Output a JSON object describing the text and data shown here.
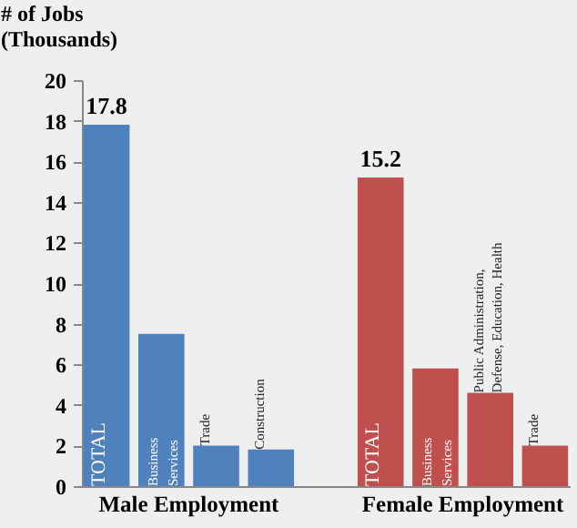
{
  "chart_data": {
    "type": "bar",
    "ylabel": "# of Jobs (Thousands)",
    "categories": [
      "TOTAL",
      "Business Services",
      "Trade",
      "Construction",
      null,
      "TOTAL",
      "Business Services",
      "Public Administration, Defense, Education, Health",
      "Trade"
    ],
    "values": [
      17.8,
      7.5,
      2.0,
      1.8,
      null,
      15.2,
      5.8,
      4.6,
      2.0
    ],
    "colors": [
      "#4f81bd",
      "#4f81bd",
      "#4f81bd",
      "#4f81bd",
      "#4f81bd",
      "#c0504d",
      "#c0504d",
      "#c0504d",
      "#c0504d"
    ],
    "value_labels": [
      "17.8",
      null,
      null,
      null,
      null,
      "15.2",
      null,
      null,
      null
    ],
    "annotations": [
      "Male Employment",
      "Female Employment"
    ],
    "ylim": [
      0,
      20
    ],
    "yticks": [
      0,
      2,
      4,
      6,
      8,
      10,
      12,
      14,
      16,
      18,
      20
    ],
    "grid": false
  }
}
